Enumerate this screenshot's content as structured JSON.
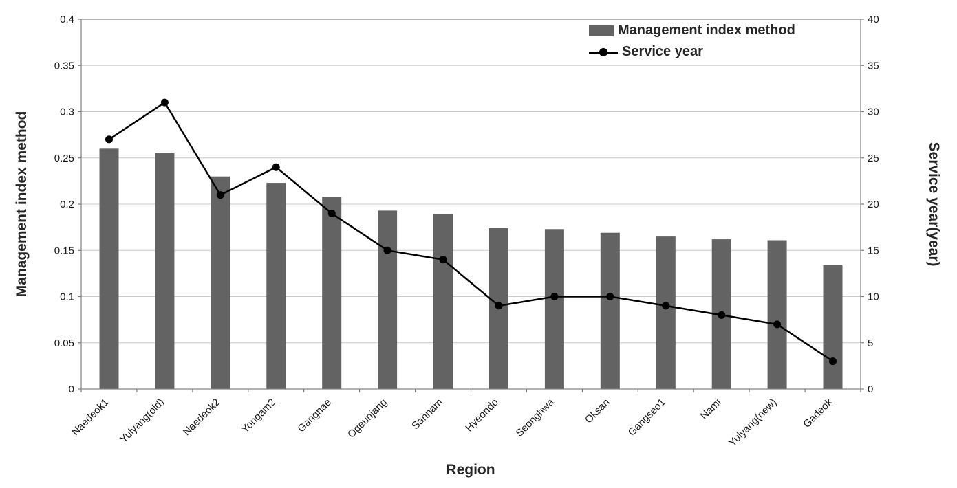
{
  "chart_data": {
    "type": "bar",
    "subtype": "bar+line combo, dual y-axes",
    "categories": [
      "Naedeok1",
      "Yulyang(old)",
      "Naedeok2",
      "Yongam2",
      "Gangnae",
      "Ogeunjang",
      "Sannam",
      "Hyeondo",
      "Seonghwa",
      "Oksan",
      "Gangseo1",
      "Nami",
      "Yulyang(new)",
      "Gadeok"
    ],
    "series": [
      {
        "name": "Management index method",
        "type": "bar",
        "axis": "left",
        "color": "#636363",
        "values": [
          0.26,
          0.255,
          0.23,
          0.223,
          0.208,
          0.193,
          0.189,
          0.174,
          0.173,
          0.169,
          0.165,
          0.162,
          0.161,
          0.134
        ]
      },
      {
        "name": "Service year",
        "type": "line",
        "axis": "right",
        "color": "#000000",
        "values": [
          27,
          31,
          21,
          24,
          19,
          15,
          14,
          9,
          10,
          10,
          9,
          8,
          7,
          3
        ]
      }
    ],
    "left_axis": {
      "label": "Management index method",
      "min": 0,
      "max": 0.4,
      "step": 0.05,
      "ticks": [
        "0",
        "0.05",
        "0.1",
        "0.15",
        "0.2",
        "0.25",
        "0.3",
        "0.35",
        "0.4"
      ]
    },
    "right_axis": {
      "label": "Service year(year)",
      "min": 0,
      "max": 40,
      "step": 5,
      "ticks": [
        "0",
        "5",
        "10",
        "15",
        "20",
        "25",
        "30",
        "35",
        "40"
      ]
    },
    "xlabel": "Region",
    "grid": true,
    "legend_position": "top-right-inside"
  },
  "legend": {
    "bar_label": "Management index method",
    "line_label": "Service year"
  },
  "colors": {
    "bar": "#636363",
    "line": "#000000",
    "grid": "#c9c9c9",
    "axis": "#808080",
    "tick_text": "#1a1a1a",
    "title_text": "#262626",
    "background": "#ffffff"
  }
}
